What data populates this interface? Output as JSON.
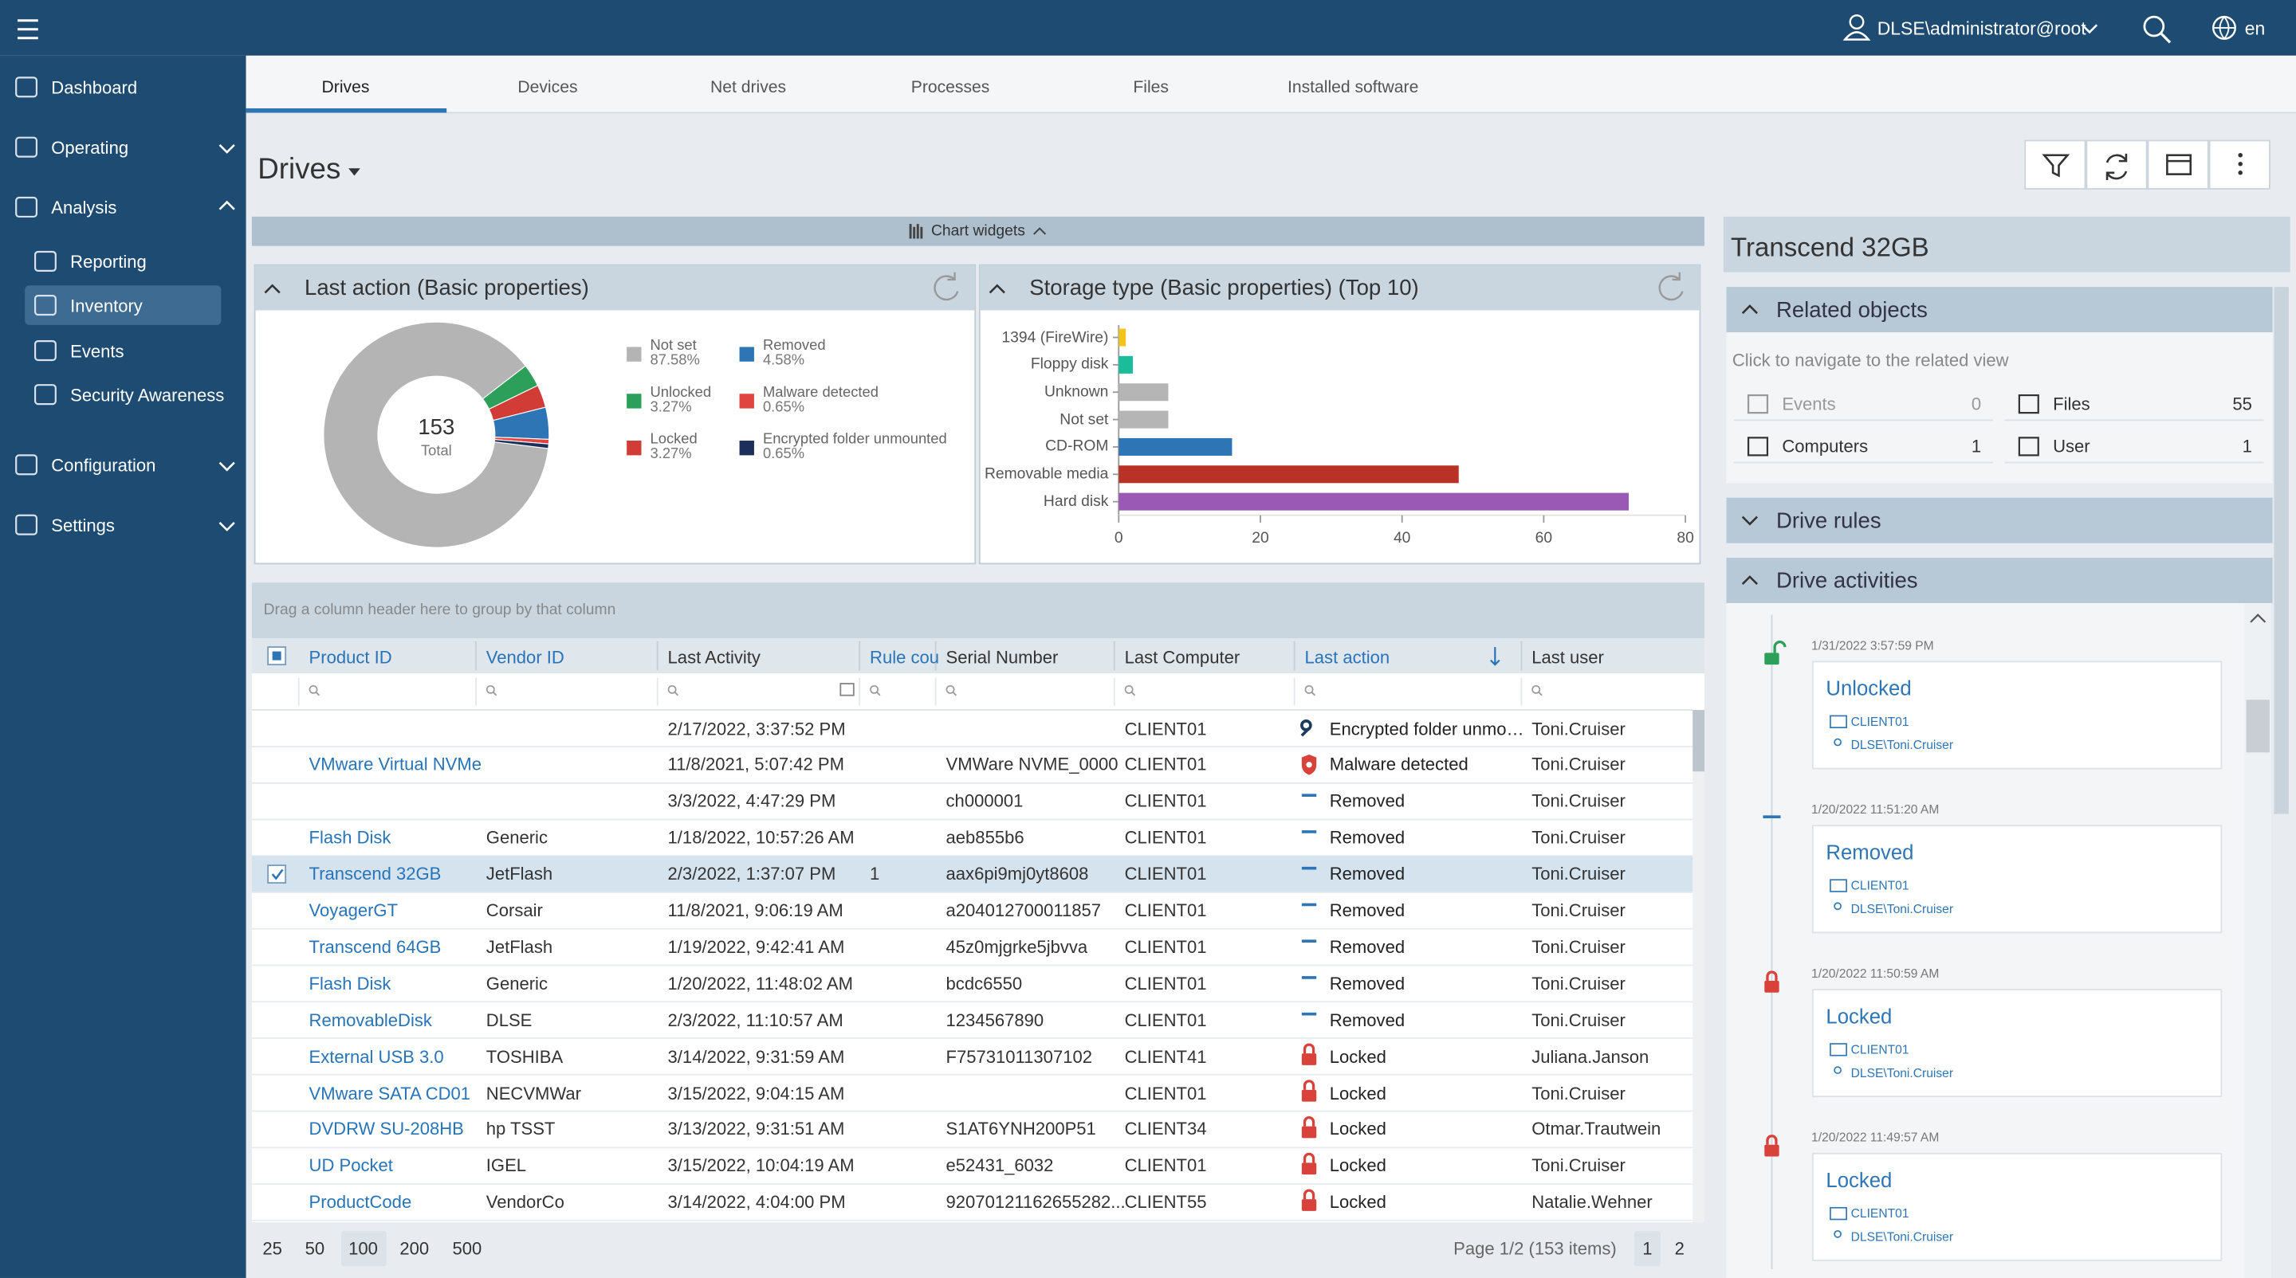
{
  "header": {
    "user": "DLSE\\administrator@root",
    "language": "en"
  },
  "nav": [
    "Dashboard",
    "Operating",
    "Analysis",
    "Reporting",
    "Inventory",
    "Events",
    "Security Awareness",
    "Configuration",
    "Settings"
  ],
  "tabs": [
    "Drives",
    "Devices",
    "Net drives",
    "Processes",
    "Files",
    "Installed software"
  ],
  "page_title": "Drives",
  "chart_widgets_label": "Chart widgets",
  "chart_data": [
    {
      "type": "pie",
      "title": "Last action (Basic properties)",
      "total": 153,
      "total_label": "Total",
      "categories": [
        "Not set",
        "Unlocked",
        "Locked",
        "Removed",
        "Malware detected",
        "Encrypted folder unmounted"
      ],
      "values": [
        87.58,
        3.27,
        3.27,
        4.58,
        0.65,
        0.65
      ],
      "value_labels": [
        "87.58%",
        "3.27%",
        "3.27%",
        "4.58%",
        "0.65%",
        "0.65%"
      ],
      "colors": [
        "#b4b4b4",
        "#2ca05a",
        "#d23c36",
        "#2e75b6",
        "#e0463f",
        "#1c2f5a"
      ]
    },
    {
      "type": "bar",
      "orientation": "horizontal",
      "title": "Storage type (Basic properties) (Top 10)",
      "categories": [
        "1394 (FireWire)",
        "Floppy disk",
        "Unknown",
        "Not set",
        "CD-ROM",
        "Removable media",
        "Hard disk"
      ],
      "values": [
        1,
        2,
        7,
        7,
        16,
        48,
        72
      ],
      "colors": [
        "#f0c419",
        "#1abc9c",
        "#b5b5b5",
        "#b5b5b5",
        "#2e75b6",
        "#b83227",
        "#9b59b6"
      ],
      "xlim": [
        0,
        80
      ],
      "xticks": [
        0,
        20,
        40,
        60,
        80
      ]
    }
  ],
  "table": {
    "group_hint": "Drag a column header here to group by that column",
    "columns": [
      "Product ID",
      "Vendor ID",
      "Last Activity",
      "Rule cou",
      "Serial Number",
      "Last Computer",
      "Last action",
      "Last user"
    ],
    "rows": [
      [
        null,
        null,
        "2/17/2022, 3:37:52 PM",
        null,
        null,
        "CLIENT01",
        "Encrypted folder unmo…",
        "Toni.Cruiser"
      ],
      [
        "VMware Virtual NVMe",
        null,
        "11/8/2021, 5:07:42 PM",
        null,
        "VMWare NVME_0000",
        "CLIENT01",
        "Malware detected",
        "Toni.Cruiser"
      ],
      [
        null,
        null,
        "3/3/2022, 4:47:29 PM",
        null,
        "ch000001",
        "CLIENT01",
        "Removed",
        "Toni.Cruiser"
      ],
      [
        "Flash Disk",
        "Generic",
        "1/18/2022, 10:57:26 AM",
        null,
        "aeb855b6",
        "CLIENT01",
        "Removed",
        "Toni.Cruiser"
      ],
      [
        "Transcend 32GB",
        "JetFlash",
        "2/3/2022, 1:37:07 PM",
        1,
        "aax6pi9mj0yt8608",
        "CLIENT01",
        "Removed",
        "Toni.Cruiser"
      ],
      [
        "VoyagerGT",
        "Corsair",
        "11/8/2021, 9:06:19 AM",
        null,
        "a204012700011857",
        "CLIENT01",
        "Removed",
        "Toni.Cruiser"
      ],
      [
        "Transcend 64GB",
        "JetFlash",
        "1/19/2022, 9:42:41 AM",
        null,
        "45z0mjgrke5jbvva",
        "CLIENT01",
        "Removed",
        "Toni.Cruiser"
      ],
      [
        "Flash Disk",
        "Generic",
        "1/20/2022, 11:48:02 AM",
        null,
        "bcdc6550",
        "CLIENT01",
        "Removed",
        "Toni.Cruiser"
      ],
      [
        "RemovableDisk",
        "DLSE",
        "2/3/2022, 11:10:57 AM",
        null,
        "1234567890",
        "CLIENT01",
        "Removed",
        "Toni.Cruiser"
      ],
      [
        "External USB 3.0",
        "TOSHIBA",
        "3/14/2022, 9:31:59 AM",
        null,
        "F75731011307102",
        "CLIENT41",
        "Locked",
        "Juliana.Janson"
      ],
      [
        "VMware SATA CD01",
        "NECVMWar",
        "3/15/2022, 9:04:15 AM",
        null,
        null,
        "CLIENT01",
        "Locked",
        "Toni.Cruiser"
      ],
      [
        "DVDRW SU-208HB",
        "hp TSST",
        "3/13/2022, 9:31:51 AM",
        null,
        "S1AT6YNH200P51",
        "CLIENT34",
        "Locked",
        "Otmar.Trautwein"
      ],
      [
        "UD Pocket",
        "IGEL",
        "3/15/2022, 10:04:19 AM",
        null,
        "e52431_6032",
        "CLIENT01",
        "Locked",
        "Toni.Cruiser"
      ],
      [
        "ProductCode",
        "VendorCo",
        "3/14/2022, 4:04:00 PM",
        null,
        "92070121162655282...",
        "CLIENT55",
        "Locked",
        "Natalie.Wehner"
      ]
    ]
  },
  "pager": {
    "sizes": [
      25,
      50,
      100,
      200,
      500
    ],
    "status": "Page 1/2 (153 items)",
    "pages": [
      1,
      2
    ]
  },
  "detail": {
    "title": "Transcend 32GB",
    "related_title": "Related objects",
    "related_hint": "Click to navigate to the related view",
    "related": [
      {
        "label": "Events",
        "count": 0
      },
      {
        "label": "Files",
        "count": 55
      },
      {
        "label": "Computers",
        "count": 1
      },
      {
        "label": "User",
        "count": 1
      }
    ],
    "rules_title": "Drive rules",
    "activities_title": "Drive activities",
    "activities": [
      {
        "time": "1/31/2022 3:57:59 PM",
        "action": "Unlocked",
        "computer": "CLIENT01",
        "user": "DLSE\\Toni.Cruiser"
      },
      {
        "time": "1/20/2022 11:51:20 AM",
        "action": "Removed",
        "computer": "CLIENT01",
        "user": "DLSE\\Toni.Cruiser"
      },
      {
        "time": "1/20/2022 11:50:59 AM",
        "action": "Locked",
        "computer": "CLIENT01",
        "user": "DLSE\\Toni.Cruiser"
      },
      {
        "time": "1/20/2022 11:49:57 AM",
        "action": "Locked",
        "computer": "CLIENT01",
        "user": "DLSE\\Toni.Cruiser"
      }
    ]
  }
}
